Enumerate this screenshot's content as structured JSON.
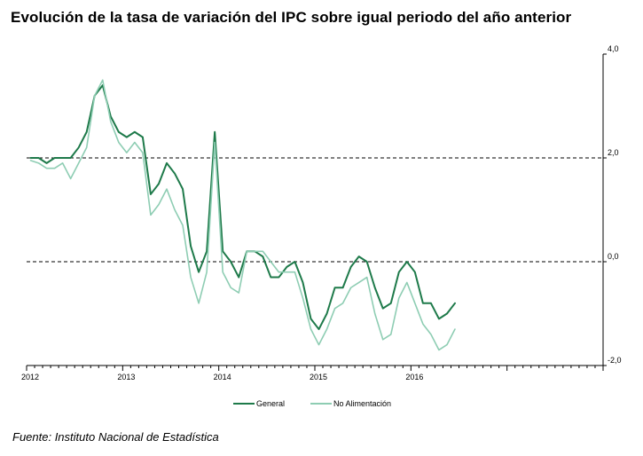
{
  "title": "Evolución de la tasa de variación del IPC sobre igual  periodo del año anterior",
  "source": "Fuente: Instituto Nacional de Estadística",
  "colors": {
    "general": "#1e7a4a",
    "no_alimentacion": "#8ecdb3",
    "axis": "#000000",
    "dashed": "#000000"
  },
  "chart_data": {
    "type": "line",
    "title": "Evolución de la tasa de variación del IPC sobre igual  periodo del año anterior",
    "xlabel": "",
    "ylabel": "",
    "ylim": [
      -2.0,
      4.0
    ],
    "y_ticks": [
      4.0,
      2.0,
      0.0,
      -2.0
    ],
    "y_tick_labels": [
      "4,0",
      "2,0",
      "0,0",
      "-2,0"
    ],
    "y_axis_side": "right",
    "dashed_reference_lines": [
      2.0,
      0.0
    ],
    "grid": false,
    "legend_position": "bottom",
    "x_start": "2012-01",
    "x_end": "2017-12",
    "x_labels": [
      {
        "label": "2012",
        "month_index": 0
      },
      {
        "label": "2013",
        "month_index": 12
      },
      {
        "label": "2014",
        "month_index": 24
      },
      {
        "label": "2015",
        "month_index": 36
      },
      {
        "label": "2016",
        "month_index": 48
      }
    ],
    "series": [
      {
        "name": "General",
        "color": "#1e7a4a",
        "values": [
          2.0,
          2.0,
          1.9,
          2.0,
          2.0,
          2.0,
          2.2,
          2.5,
          3.2,
          3.4,
          2.8,
          2.5,
          2.4,
          2.5,
          2.4,
          1.3,
          1.5,
          1.9,
          1.7,
          1.4,
          0.3,
          -0.2,
          0.2,
          2.5,
          0.2,
          0.0,
          -0.3,
          0.2,
          0.2,
          0.1,
          -0.3,
          -0.3,
          -0.1,
          0.0,
          -0.4,
          -1.1,
          -1.3,
          -1.0,
          -0.5,
          -0.5,
          -0.1,
          0.1,
          0.0,
          -0.5,
          -0.9,
          -0.8,
          -0.2,
          0.0,
          -0.2,
          -0.8,
          -0.8,
          -1.1,
          -1.0,
          -0.8
        ]
      },
      {
        "name": "No Alimentación",
        "color": "#8ecdb3",
        "values": [
          1.95,
          1.9,
          1.8,
          1.8,
          1.9,
          1.6,
          1.9,
          2.2,
          3.2,
          3.5,
          2.7,
          2.3,
          2.1,
          2.3,
          2.1,
          0.9,
          1.1,
          1.4,
          1.0,
          0.7,
          -0.3,
          -0.8,
          -0.2,
          2.3,
          -0.2,
          -0.5,
          -0.6,
          0.2,
          0.2,
          0.2,
          0.0,
          -0.2,
          -0.2,
          -0.2,
          -0.7,
          -1.3,
          -1.6,
          -1.3,
          -0.9,
          -0.8,
          -0.5,
          -0.4,
          -0.3,
          -1.0,
          -1.5,
          -1.4,
          -0.7,
          -0.4,
          -0.8,
          -1.2,
          -1.4,
          -1.7,
          -1.6,
          -1.3
        ]
      }
    ]
  }
}
